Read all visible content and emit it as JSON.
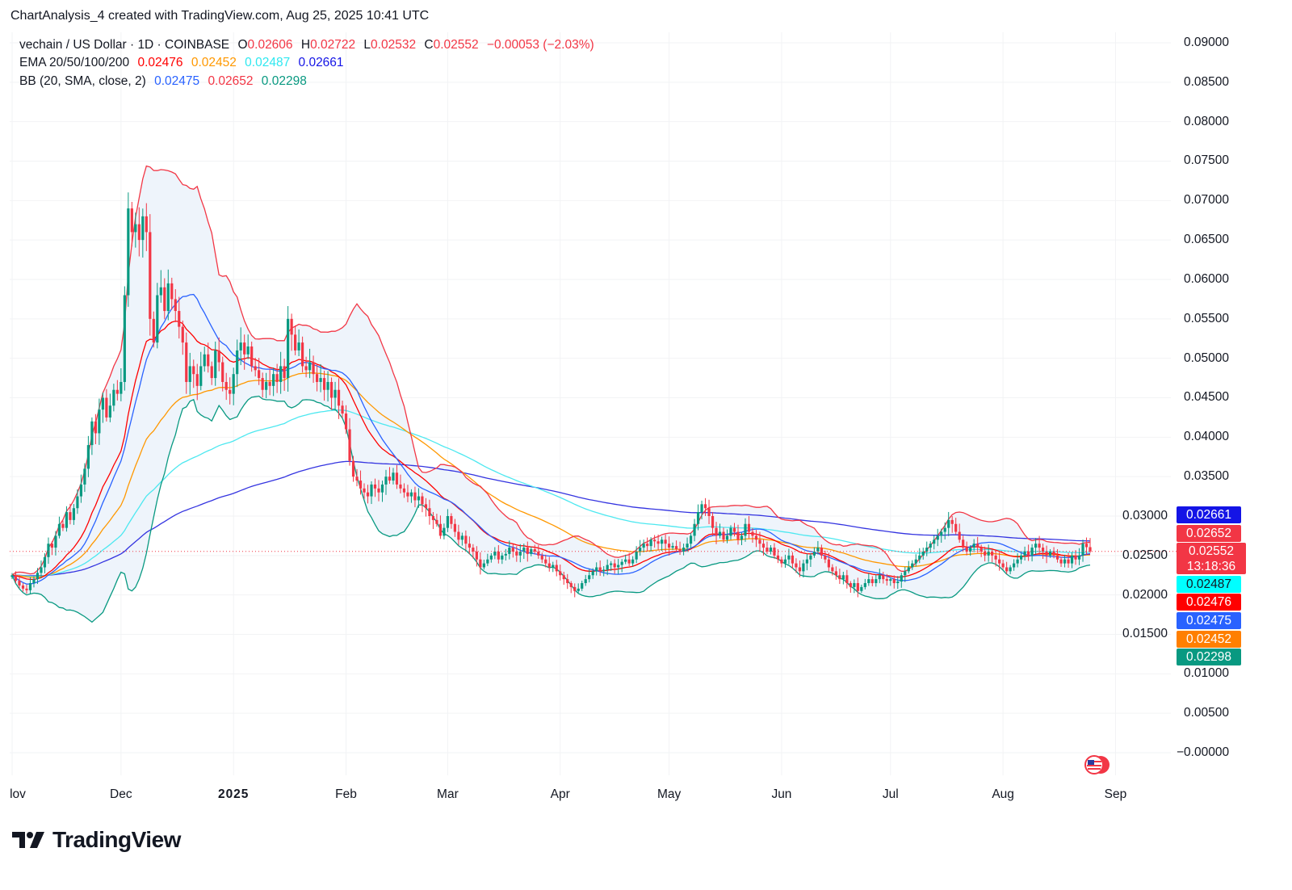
{
  "credit": "ChartAnalysis_4 created with TradingView.com, Aug 25, 2025 10:41 UTC",
  "legend": {
    "symbol": "vechain / US Dollar · 1D · COINBASE",
    "o_label": "O",
    "o": "0.02606",
    "h_label": "H",
    "h": "0.02722",
    "l_label": "L",
    "l": "0.02532",
    "c_label": "C",
    "c": "0.02552",
    "change": "−0.00053 (−2.03%)",
    "ema_label": "EMA 20/50/100/200",
    "ema": [
      "0.02476",
      "0.02452",
      "0.02487",
      "0.02661"
    ],
    "bb_label": "BB (20, SMA, close, 2)",
    "bb": [
      "0.02475",
      "0.02652",
      "0.02298"
    ]
  },
  "badges": [
    {
      "value": "0.02661",
      "color": "#1414e6",
      "text": "#ffffff"
    },
    {
      "value": "0.02652",
      "color": "#f23645",
      "text": "#ffffff"
    },
    {
      "value": "0.02552",
      "sub": "13:18:36",
      "color": "#f23645",
      "text": "#ffffff"
    },
    {
      "value": "0.02487",
      "color": "#00ffff",
      "text": "#131722"
    },
    {
      "value": "0.02476",
      "color": "#ff0000",
      "text": "#ffffff"
    },
    {
      "value": "0.02475",
      "color": "#2962ff",
      "text": "#ffffff"
    },
    {
      "value": "0.02452",
      "color": "#ff7f00",
      "text": "#ffffff"
    },
    {
      "value": "0.02298",
      "color": "#089981",
      "text": "#ffffff"
    }
  ],
  "logo": "TradingView",
  "colors": {
    "up": "#089981",
    "down": "#f23645",
    "ema20": "#ff0000",
    "ema50": "#ff9800",
    "ema100": "#4de8f0",
    "ema200": "#3434e0",
    "bb_basis": "#2962ff",
    "bb_upper": "#f23645",
    "bb_lower": "#089981",
    "bb_fill": "#eef4fb"
  },
  "chart_data": {
    "type": "candlestick",
    "title": "vechain / US Dollar · 1D · COINBASE",
    "start_date": "2024-11-01",
    "end_date": "2025-08-25",
    "ylim": [
      0,
      0.09
    ],
    "y_ticks": [
      "0.09000",
      "0.08500",
      "0.08000",
      "0.07500",
      "0.07000",
      "0.06500",
      "0.06000",
      "0.05500",
      "0.05000",
      "0.04500",
      "0.04000",
      "0.03500",
      "0.03000",
      "0.02500",
      "0.02000",
      "0.01500",
      "0.01000",
      "0.00500",
      "−0.00000"
    ],
    "x_ticks": [
      {
        "label": "lov",
        "date": "2024-11-01"
      },
      {
        "label": "Dec",
        "date": "2024-12-01"
      },
      {
        "label": "2025",
        "date": "2025-01-01",
        "bold": true
      },
      {
        "label": "Feb",
        "date": "2025-02-01"
      },
      {
        "label": "Mar",
        "date": "2025-03-01"
      },
      {
        "label": "Apr",
        "date": "2025-04-01"
      },
      {
        "label": "May",
        "date": "2025-05-01"
      },
      {
        "label": "Jun",
        "date": "2025-06-01"
      },
      {
        "label": "Jul",
        "date": "2025-07-01"
      },
      {
        "label": "Aug",
        "date": "2025-08-01"
      },
      {
        "label": "Sep",
        "date": "2025-09-01"
      }
    ],
    "last_candle": {
      "open": 0.02606,
      "high": 0.02722,
      "low": 0.02532,
      "close": 0.02552
    },
    "last_price": 0.02552,
    "indicators": [
      "EMA 20",
      "EMA 50",
      "EMA 100",
      "EMA 200",
      "BB (20, SMA, close, 2)"
    ],
    "closes": [
      0.0225,
      0.0218,
      0.0212,
      0.0208,
      0.0206,
      0.0215,
      0.022,
      0.0228,
      0.0235,
      0.0248,
      0.0265,
      0.026,
      0.0275,
      0.029,
      0.0285,
      0.0305,
      0.0295,
      0.031,
      0.0325,
      0.034,
      0.036,
      0.039,
      0.042,
      0.0405,
      0.0435,
      0.045,
      0.0425,
      0.044,
      0.046,
      0.0455,
      0.047,
      0.058,
      0.069,
      0.066,
      0.067,
      0.065,
      0.068,
      0.066,
      0.055,
      0.052,
      0.058,
      0.059,
      0.056,
      0.0595,
      0.0575,
      0.056,
      0.054,
      0.052,
      0.047,
      0.049,
      0.048,
      0.0465,
      0.049,
      0.0505,
      0.049,
      0.0475,
      0.051,
      0.0495,
      0.047,
      0.046,
      0.0455,
      0.048,
      0.051,
      0.052,
      0.0505,
      0.0515,
      0.049,
      0.0485,
      0.0475,
      0.046,
      0.047,
      0.0465,
      0.048,
      0.047,
      0.049,
      0.0475,
      0.055,
      0.053,
      0.051,
      0.052,
      0.049,
      0.0485,
      0.0495,
      0.048,
      0.047,
      0.0475,
      0.046,
      0.047,
      0.045,
      0.046,
      0.044,
      0.043,
      0.041,
      0.037,
      0.035,
      0.0345,
      0.0335,
      0.033,
      0.0325,
      0.034,
      0.0335,
      0.033,
      0.034,
      0.035,
      0.0345,
      0.0355,
      0.034,
      0.0335,
      0.033,
      0.0325,
      0.033,
      0.032,
      0.0325,
      0.0315,
      0.031,
      0.03,
      0.0295,
      0.029,
      0.0275,
      0.0285,
      0.03,
      0.029,
      0.028,
      0.027,
      0.0275,
      0.0265,
      0.026,
      0.0255,
      0.0245,
      0.0235,
      0.024,
      0.0245,
      0.025,
      0.0255,
      0.0245,
      0.025,
      0.0252,
      0.026,
      0.0255,
      0.025,
      0.0255,
      0.026,
      0.0252,
      0.0258,
      0.0255,
      0.025,
      0.0245,
      0.024,
      0.0235,
      0.0238,
      0.023,
      0.0225,
      0.022,
      0.0215,
      0.021,
      0.0205,
      0.0208,
      0.0215,
      0.022,
      0.0225,
      0.023,
      0.0235,
      0.023,
      0.0232,
      0.0238,
      0.024,
      0.0235,
      0.0238,
      0.0242,
      0.0245,
      0.024,
      0.0245,
      0.0255,
      0.026,
      0.0265,
      0.0262,
      0.027,
      0.0268,
      0.0265,
      0.027,
      0.0265,
      0.026,
      0.0262,
      0.0258,
      0.0255,
      0.026,
      0.0265,
      0.0275,
      0.029,
      0.0305,
      0.0315,
      0.031,
      0.03,
      0.0285,
      0.0275,
      0.028,
      0.027,
      0.0275,
      0.0285,
      0.028,
      0.027,
      0.0275,
      0.029,
      0.028,
      0.0275,
      0.027,
      0.0265,
      0.026,
      0.0255,
      0.026,
      0.025,
      0.0245,
      0.024,
      0.0245,
      0.025,
      0.024,
      0.0235,
      0.023,
      0.024,
      0.0245,
      0.025,
      0.0255,
      0.026,
      0.025,
      0.0245,
      0.0235,
      0.023,
      0.0225,
      0.022,
      0.0225,
      0.0215,
      0.021,
      0.0215,
      0.0205,
      0.021,
      0.0215,
      0.022,
      0.0215,
      0.022,
      0.0225,
      0.022,
      0.0218,
      0.022,
      0.0215,
      0.0217,
      0.0225,
      0.023,
      0.0235,
      0.024,
      0.0245,
      0.025,
      0.0255,
      0.026,
      0.0265,
      0.027,
      0.0275,
      0.028,
      0.0285,
      0.0295,
      0.029,
      0.028,
      0.027,
      0.026,
      0.0255,
      0.026,
      0.0265,
      0.026,
      0.0255,
      0.025,
      0.0255,
      0.025,
      0.0245,
      0.024,
      0.0235,
      0.023,
      0.0235,
      0.024,
      0.0245,
      0.025,
      0.0255,
      0.025,
      0.026,
      0.0265,
      0.026,
      0.0255,
      0.025,
      0.0255,
      0.025,
      0.0245,
      0.024,
      0.0245,
      0.024,
      0.025,
      0.0245,
      0.025,
      0.0265,
      0.02606,
      0.02552
    ]
  }
}
